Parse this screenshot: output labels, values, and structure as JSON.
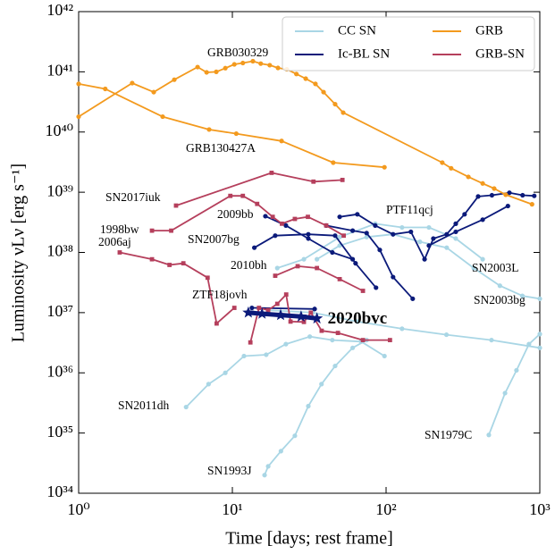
{
  "chart_data": {
    "type": "line",
    "x_label": "Time [days; rest frame]",
    "y_label": "Luminosity νLν [erg s⁻¹]",
    "x_log": true,
    "y_log": true,
    "xlim": [
      1,
      1000
    ],
    "ylim": [
      1e+34,
      1e+42
    ],
    "xticks": [
      {
        "value": 1,
        "label": "10⁰"
      },
      {
        "value": 10,
        "label": "10¹"
      },
      {
        "value": 100,
        "label": "10²"
      },
      {
        "value": 1000,
        "label": "10³"
      }
    ],
    "yticks": [
      {
        "value": 1e+34,
        "label": "10³⁴"
      },
      {
        "value": 1e+35,
        "label": "10³⁵"
      },
      {
        "value": 1e+36,
        "label": "10³⁶"
      },
      {
        "value": 1e+37,
        "label": "10³⁷"
      },
      {
        "value": 1e+38,
        "label": "10³⁸"
      },
      {
        "value": 1e+39,
        "label": "10³⁹"
      },
      {
        "value": 1e+40,
        "label": "10⁴⁰"
      },
      {
        "value": 1e+41,
        "label": "10⁴¹"
      },
      {
        "value": 1e+42,
        "label": "10⁴²"
      }
    ],
    "legend_position": "upper right",
    "series": [
      {
        "name": "CC SN",
        "color": "#a9d6e5",
        "marker": "circle",
        "lines": [
          {
            "x": [
              5.0,
              7.0,
              9.0,
              11.9,
              16.6,
              22.3,
              31.9,
              44.7,
              68.9,
              97.6
            ],
            "values": [
              2.7e+35,
              6.5e+35,
              1e+36,
              1.9e+36,
              2e+36,
              3e+36,
              4e+36,
              3.5e+36,
              3.3e+36,
              1.9e+36
            ]
          },
          {
            "x": [
              16.2,
              17.1,
              20.7,
              25.5,
              31.2,
              38,
              46.6,
              60.6,
              74.7
            ],
            "values": [
              2e+34,
              2.8e+34,
              5e+34,
              9e+34,
              2.8e+35,
              6.5e+35,
              1.3e+36,
              2.6e+36,
              3.5e+36
            ]
          },
          {
            "x": [
              466,
              594,
              705,
              850,
              1000
            ],
            "values": [
              9.3e+34,
              4.6e+35,
              1.1e+36,
              3e+36,
              4.4e+36
            ]
          },
          {
            "x": [
              17.1,
              33.3,
              65,
              127,
              247,
              485,
              1000
            ],
            "values": [
              1.1e+37,
              1e+37,
              7.1e+36,
              5.4e+36,
              4.3e+36,
              3.5e+36,
              2.6e+36
            ]
          },
          {
            "x": [
              35.5,
              49.9,
              74.7,
              111,
              166,
              248,
              372,
              550,
              770,
              1000
            ],
            "values": [
              7.7e+37,
              1.3e+38,
              1.8e+38,
              2e+38,
              1.5e+38,
              1.2e+38,
              5.5e+37,
              2.8e+37,
              1.9e+37,
              1.7e+37
            ]
          },
          {
            "x": [
              19.6,
              29.2,
              49.9,
              85,
              127,
              190,
              284,
              425
            ],
            "values": [
              5.5e+37,
              7.7e+37,
              1.8e+38,
              3e+38,
              2.6e+38,
              2.6e+38,
              1.7e+38,
              7.7e+37
            ]
          }
        ]
      },
      {
        "name": "Ic-BL SN",
        "color": "#0b1a7a",
        "marker": "circle",
        "lines": [
          {
            "x": [
              16.4,
              22.3,
              31.2,
              44.7,
              60.6
            ],
            "values": [
              4e+38,
              2.8e+38,
              1.7e+38,
              1e+38,
              7.7e+37
            ]
          },
          {
            "x": [
              13.9,
              19,
              31.2,
              46.6,
              63.3,
              86
            ],
            "values": [
              1.2e+38,
              1.9e+38,
              2e+38,
              1.9e+38,
              6.6e+37,
              2.6e+37
            ]
          },
          {
            "x": [
              40.8,
              60.6,
              74.7,
              91,
              111,
              149
            ],
            "values": [
              2.8e+38,
              2.3e+38,
              2.1e+38,
              1.1e+38,
              3.9e+37,
              1.7e+37
            ]
          },
          {
            "x": [
              49.9,
              65,
              85,
              111,
              145,
              178,
              203,
              248,
              284,
              324,
              397,
              488,
              634,
              773,
              920
            ],
            "values": [
              3.9e+38,
              4.3e+38,
              2.8e+38,
              2e+38,
              2.2e+38,
              7.7e+37,
              1.7e+38,
              2e+38,
              3e+38,
              4.3e+38,
              8.5e+38,
              8.9e+38,
              9.8e+38,
              8.9e+38,
              8.7e+38
            ]
          },
          {
            "x": [
              190,
              284,
              425,
              620
            ],
            "values": [
              1.3e+38,
              2.2e+38,
              3.5e+38,
              5.9e+38
            ]
          },
          {
            "x": [
              13.4,
              34.3
            ],
            "values": [
              1.2e+37,
              1.15e+37
            ]
          }
        ]
      },
      {
        "name": "GRB",
        "color": "#f39a1e",
        "marker": "circle",
        "lines": [
          {
            "x": [
              1,
              2.23,
              3.08,
              4.19,
              5.94,
              6.8,
              7.86,
              9.0,
              10.3,
              11.7,
              13.6,
              15.3,
              17.5,
              19.8,
              22.6,
              26.1,
              30,
              34.7,
              39.2,
              46.6,
              52.6,
              232,
              265,
              343,
              425,
              505,
              600,
              890
            ],
            "values": [
              1.8e+40,
              6.5e+40,
              4.6e+40,
              7.4e+40,
              1.2e+41,
              9.8e+40,
              1e+41,
              1.15e+41,
              1.33e+41,
              1.4e+41,
              1.5e+41,
              1.37e+41,
              1.29e+41,
              1.16e+41,
              1.1e+41,
              9.2e+40,
              7.7e+40,
              6.3e+40,
              4.6e+40,
              2.9e+40,
              2.1e+40,
              3.1e+39,
              2.5e+39,
              1.8e+39,
              1.4e+39,
              1.15e+39,
              9.1e+38,
              6.3e+38
            ]
          },
          {
            "x": [
              1,
              1.49,
              3.52,
              7.06,
              10.6,
              20.9,
              45.3,
              97.6
            ],
            "values": [
              6.3e+40,
              5.2e+40,
              1.8e+40,
              1.1e+40,
              9.4e+39,
              7.1e+39,
              3.1e+39,
              2.6e+39
            ]
          }
        ]
      },
      {
        "name": "GRB-SN",
        "color": "#b53f5c",
        "marker": "square",
        "lines": [
          {
            "x": [
              4.3,
              18,
              33.7,
              52
            ],
            "values": [
              6e+38,
              2.1e+39,
              1.5e+39,
              1.6e+39
            ]
          },
          {
            "x": [
              3.0,
              4.0,
              9.7,
              11.7,
              14.5,
              18.3,
              21,
              25.5,
              31,
              40.8,
              53
            ],
            "values": [
              2.3e+38,
              2.3e+38,
              8.7e+38,
              8.7e+38,
              6.4e+38,
              3.9e+38,
              3e+38,
              3.6e+38,
              3.9e+38,
              2.8e+38,
              1.9e+38
            ]
          },
          {
            "x": [
              1.85,
              3.0,
              3.9,
              4.8,
              6.9,
              7.9,
              10.3
            ],
            "values": [
              1e+38,
              7.7e+37,
              6.2e+37,
              6.6e+37,
              3.8e+37,
              6.6e+36,
              1.2e+37
            ]
          },
          {
            "x": [
              19,
              26.6,
              35.5,
              49.9,
              70.7
            ],
            "values": [
              4.1e+37,
              5.9e+37,
              5.5e+37,
              3.6e+37,
              2.3e+37
            ]
          },
          {
            "x": [
              13.1,
              14.9,
              17.1,
              19.6,
              22.4,
              23.9,
              29.2,
              32.4,
              38.1,
              48.6,
              70.7,
              106
            ],
            "values": [
              3.2e+36,
              1.2e+37,
              1.1e+37,
              1.4e+37,
              2e+37,
              7.1e+36,
              7e+36,
              1e+37,
              5e+36,
              4.6e+36,
              3.5e+36,
              3.5e+36
            ]
          }
        ]
      }
    ],
    "highlight": {
      "name": "2020bvc",
      "color": "#0b1a7a",
      "marker": "star",
      "x": [
        12.7,
        15.6,
        20.6,
        28,
        35.5
      ],
      "values": [
        1e+37,
        9.6e+36,
        9.1e+36,
        8.6e+36,
        8e+36
      ]
    },
    "annotations": [
      "GRB030329",
      "GRB130427A",
      "SN2017iuk",
      "1998bw",
      "2006aj",
      "2009bb",
      "SN2007bg",
      "2010bh",
      "ZTF18jovh",
      "PTF11qcj",
      "SN2003L",
      "SN2003bg",
      "SN2011dh",
      "SN1979C",
      "SN1993J"
    ]
  }
}
